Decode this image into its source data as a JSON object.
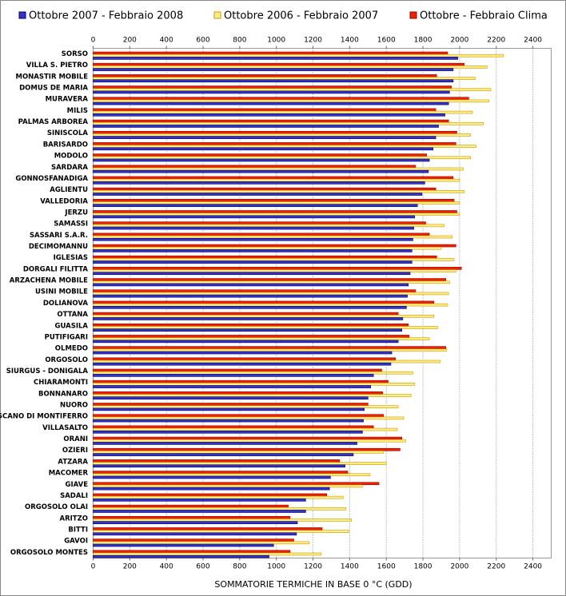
{
  "chart_data": {
    "type": "bar",
    "orientation": "horizontal",
    "x_label": "SOMMATORIE TERMICHE IN BASE 0 °C (GDD)",
    "categories": [
      "SORSO",
      "VILLA S. PIETRO",
      "MONASTIR MOBILE",
      "DOMUS DE MARIA",
      "MURAVERA",
      "MILIS",
      "PALMAS ARBOREA",
      "SINISCOLA",
      "BARISARDO",
      "MODOLO",
      "SARDARA",
      "GONNOSFANADIGA",
      "AGLIENTU",
      "VALLEDORIA",
      "JERZU",
      "SAMASSI",
      "SASSARI S.A.R.",
      "DECIMOMANNU",
      "IGLESIAS",
      "DORGALI FILITTA",
      "ARZACHENA MOBILE",
      "USINI MOBILE",
      "DOLIANOVA",
      "OTTANA",
      "GUASILA",
      "PUTIFIGARI",
      "OLMEDO",
      "ORGOSOLO",
      "SIURGUS - DONIGALA",
      "CHIARAMONTI",
      "BONNANARO",
      "NUORO",
      "SCANO DI MONTIFERRO",
      "VILLASALTO",
      "ORANI",
      "OZIERI",
      "ATZARA",
      "MACOMER",
      "GIAVE",
      "SADALI",
      "ORGOSOLO OLAI",
      "ARITZO",
      "BITTI",
      "GAVOI",
      "ORGOSOLO MONTES"
    ],
    "series": [
      {
        "name": "Ottobre 2007 - Febbraio 2008",
        "color": "#3333cc",
        "values": [
          1990,
          1965,
          1965,
          1945,
          1940,
          1920,
          1885,
          1870,
          1855,
          1835,
          1830,
          1810,
          1795,
          1770,
          1755,
          1750,
          1745,
          1740,
          1740,
          1730,
          1720,
          1715,
          1710,
          1690,
          1685,
          1665,
          1630,
          1625,
          1530,
          1515,
          1500,
          1480,
          1475,
          1470,
          1440,
          1420,
          1375,
          1295,
          1290,
          1160,
          1160,
          1115,
          1110,
          985,
          960
        ]
      },
      {
        "name": "Ottobre 2006 - Febbraio 2007",
        "color": "#ffee88",
        "values": [
          2240,
          2150,
          2085,
          2170,
          2160,
          2070,
          2130,
          2060,
          2090,
          2060,
          2020,
          2000,
          2025,
          2000,
          2000,
          1915,
          1960,
          1900,
          1970,
          1980,
          1945,
          1940,
          1935,
          1860,
          1880,
          1835,
          1930,
          1895,
          1745,
          1755,
          1735,
          1665,
          1695,
          1660,
          1705,
          1585,
          1600,
          1510,
          1470,
          1365,
          1380,
          1410,
          1395,
          1180,
          1245
        ]
      },
      {
        "name": "Ottobre - Febbraio Clima",
        "color": "#ee2200",
        "values": [
          1935,
          2025,
          1875,
          1955,
          2050,
          1870,
          1940,
          1985,
          1980,
          1820,
          1760,
          1965,
          1870,
          1970,
          1985,
          1815,
          1835,
          1980,
          1875,
          2010,
          1925,
          1760,
          1860,
          1665,
          1720,
          1725,
          1925,
          1650,
          1575,
          1610,
          1580,
          1500,
          1585,
          1530,
          1685,
          1675,
          1345,
          1390,
          1560,
          1275,
          1065,
          1075,
          1250,
          1095,
          1075
        ]
      }
    ],
    "xlim": [
      0,
      2500
    ],
    "xticks": [
      0,
      200,
      400,
      600,
      800,
      1000,
      1200,
      1400,
      1600,
      1800,
      2000,
      2200,
      2400
    ],
    "grid": true
  }
}
